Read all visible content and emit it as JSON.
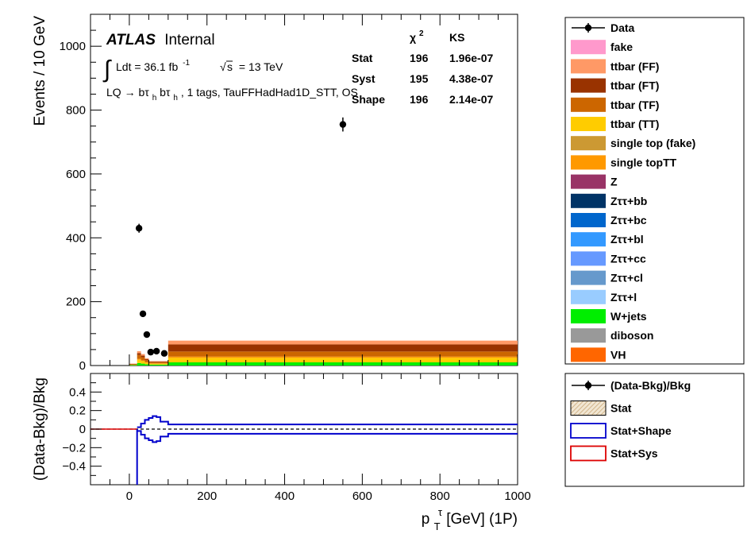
{
  "chart_data": [
    {
      "type": "bar",
      "panel": "main",
      "ylabel": "Events / 10 GeV",
      "xlim": [
        -100,
        1000
      ],
      "ylim": [
        0,
        1100
      ],
      "yticks": [
        0,
        200,
        400,
        600,
        800,
        1000
      ],
      "atlas": {
        "brand": "ATLAS",
        "status": "Internal"
      },
      "lumi": {
        "integral": "Ldt = 36.1 fb",
        "exponent": "-1",
        "sqrt": "s",
        "energy": "= 13 TeV"
      },
      "region": {
        "prefix": "LQ",
        "arrow": "→",
        "b1": "bτ",
        "sub1": "h",
        "b2": "bτ",
        "sub2": "h",
        "suffix": ", 1 tags, TauFFHadHad1D_STT, OS"
      },
      "stats_table": {
        "headers": [
          "χ",
          "2",
          "KS"
        ],
        "rows": [
          {
            "label": "Stat",
            "chi2": "196",
            "ks": "1.96e-07"
          },
          {
            "label": "Syst",
            "chi2": "195",
            "ks": "4.38e-07"
          },
          {
            "label": "Shape",
            "chi2": "196",
            "ks": "2.14e-07"
          }
        ]
      },
      "data_points": [
        {
          "x": 25,
          "y": 430,
          "err": 14
        },
        {
          "x": 35,
          "y": 162,
          "err": 10
        },
        {
          "x": 45,
          "y": 97,
          "err": 8
        },
        {
          "x": 55,
          "y": 42,
          "err": 6
        },
        {
          "x": 70,
          "y": 45,
          "err": 6
        },
        {
          "x": 90,
          "y": 38,
          "err": 6
        },
        {
          "x": 550,
          "y": 755,
          "err": 22
        }
      ],
      "stack_bins": [
        {
          "x0": 0,
          "x1": 20,
          "layers": {
            "wjets": 2,
            "ttbar_tt": 1,
            "ttbar_tf": 1,
            "ttbar_ft": 1,
            "ttbar_ff": 1
          }
        },
        {
          "x0": 20,
          "x1": 30,
          "layers": {
            "wjets": 8,
            "ttbar_tt": 10,
            "single_top_tt": 3,
            "ttbar_tf": 12,
            "ttbar_ft": 6,
            "ttbar_ff": 6
          }
        },
        {
          "x0": 30,
          "x1": 40,
          "layers": {
            "wjets": 6,
            "ttbar_tt": 8,
            "single_top_tt": 2,
            "ttbar_tf": 10,
            "ttbar_ft": 5,
            "ttbar_ff": 5
          }
        },
        {
          "x0": 40,
          "x1": 50,
          "layers": {
            "wjets": 4,
            "ttbar_tt": 5,
            "single_top_tt": 2,
            "ttbar_tf": 6,
            "ttbar_ft": 3,
            "ttbar_ff": 3
          }
        },
        {
          "x0": 50,
          "x1": 100,
          "layers": {
            "wjets": 3,
            "ttbar_tt": 3,
            "single_top_tt": 1,
            "ttbar_tf": 3,
            "ttbar_ft": 2,
            "ttbar_ff": 2
          }
        },
        {
          "x0": 100,
          "x1": 1000,
          "layers": {
            "wjets": 10,
            "ttbar_tt": 14,
            "single_top_tt": 4,
            "ttbar_tf": 16,
            "ttbar_ft": 22,
            "ttbar_ff": 12
          }
        }
      ],
      "legend_placement": "right",
      "legend": [
        {
          "label": "Data",
          "key": "data",
          "style": "marker",
          "color": "#000000"
        },
        {
          "label": "fake",
          "key": "fake",
          "style": "box",
          "color": "#ff99cc"
        },
        {
          "label": "ttbar (FF)",
          "key": "ttbar_ff",
          "style": "box",
          "color": "#ff9966"
        },
        {
          "label": "ttbar (FT)",
          "key": "ttbar_ft",
          "style": "box",
          "color": "#993300"
        },
        {
          "label": "ttbar (TF)",
          "key": "ttbar_tf",
          "style": "box",
          "color": "#cc6600"
        },
        {
          "label": "ttbar (TT)",
          "key": "ttbar_tt",
          "style": "box",
          "color": "#ffcc00"
        },
        {
          "label": "single top (fake)",
          "key": "single_top_fake",
          "style": "box",
          "color": "#cc9933"
        },
        {
          "label": "single topTT",
          "key": "single_top_tt",
          "style": "box",
          "color": "#ff9900"
        },
        {
          "label": "Z",
          "key": "z",
          "style": "box",
          "color": "#993366"
        },
        {
          "label": "Zττ+bb",
          "key": "ztt_bb",
          "style": "box",
          "color": "#003366"
        },
        {
          "label": "Zττ+bc",
          "key": "ztt_bc",
          "style": "box",
          "color": "#0066cc"
        },
        {
          "label": "Zττ+bl",
          "key": "ztt_bl",
          "style": "box",
          "color": "#3399ff"
        },
        {
          "label": "Zττ+cc",
          "key": "ztt_cc",
          "style": "box",
          "color": "#6699ff"
        },
        {
          "label": "Zττ+cl",
          "key": "ztt_cl",
          "style": "box",
          "color": "#6699cc"
        },
        {
          "label": "Zττ+l",
          "key": "ztt_l",
          "style": "box",
          "color": "#99ccff"
        },
        {
          "label": "W+jets",
          "key": "wjets",
          "style": "box",
          "color": "#00ee00"
        },
        {
          "label": "diboson",
          "key": "diboson",
          "style": "box",
          "color": "#999999"
        },
        {
          "label": "VH",
          "key": "vh",
          "style": "box",
          "color": "#ff6600"
        }
      ],
      "stack_order": [
        "wjets",
        "ttbar_tt",
        "single_top_tt",
        "ttbar_tf",
        "ttbar_ft",
        "ttbar_ff"
      ]
    },
    {
      "type": "line",
      "panel": "ratio",
      "ylabel": "(Data-Bkg)/Bkg",
      "xlabel": "p",
      "xlabel_sub": "T",
      "xlabel_sup": "τ",
      "xlabel_suffix": " [GeV] (1P)",
      "xlim": [
        -100,
        1000
      ],
      "ylim": [
        -0.6,
        0.6
      ],
      "yticks": [
        -0.4,
        -0.2,
        0,
        0.2,
        0.4
      ],
      "ytick_labels": [
        "−0.4",
        "−0.2",
        "0",
        "0.2",
        "0.4"
      ],
      "xticks": [
        0,
        200,
        400,
        600,
        800,
        1000
      ],
      "xtick_labels": [
        "0",
        "200",
        "400",
        "600",
        "800",
        "1000"
      ],
      "stat_shape_band": [
        {
          "x0": 20,
          "x1": 30,
          "lo": -0.02,
          "hi": 0.02
        },
        {
          "x0": 30,
          "x1": 40,
          "lo": -0.06,
          "hi": 0.06
        },
        {
          "x0": 40,
          "x1": 50,
          "lo": -0.1,
          "hi": 0.1
        },
        {
          "x0": 50,
          "x1": 60,
          "lo": -0.12,
          "hi": 0.12
        },
        {
          "x0": 60,
          "x1": 70,
          "lo": -0.14,
          "hi": 0.14
        },
        {
          "x0": 70,
          "x1": 80,
          "lo": -0.13,
          "hi": 0.13
        },
        {
          "x0": 80,
          "x1": 100,
          "lo": -0.08,
          "hi": 0.08
        },
        {
          "x0": 100,
          "x1": 1000,
          "lo": -0.05,
          "hi": 0.05
        }
      ],
      "ratio_line": [
        {
          "x": -100,
          "y": 0
        },
        {
          "x": 20,
          "y": 0
        },
        {
          "x": 20,
          "y": -0.6
        }
      ],
      "legend": [
        {
          "label": "(Data-Bkg)/Bkg",
          "style": "marker",
          "color": "#000000"
        },
        {
          "label": "Stat",
          "style": "hatch",
          "color": "#d4b896"
        },
        {
          "label": "Stat+Shape",
          "style": "outline",
          "color": "#0000cc"
        },
        {
          "label": "Stat+Sys",
          "style": "outline",
          "color": "#dd0000"
        }
      ]
    }
  ]
}
